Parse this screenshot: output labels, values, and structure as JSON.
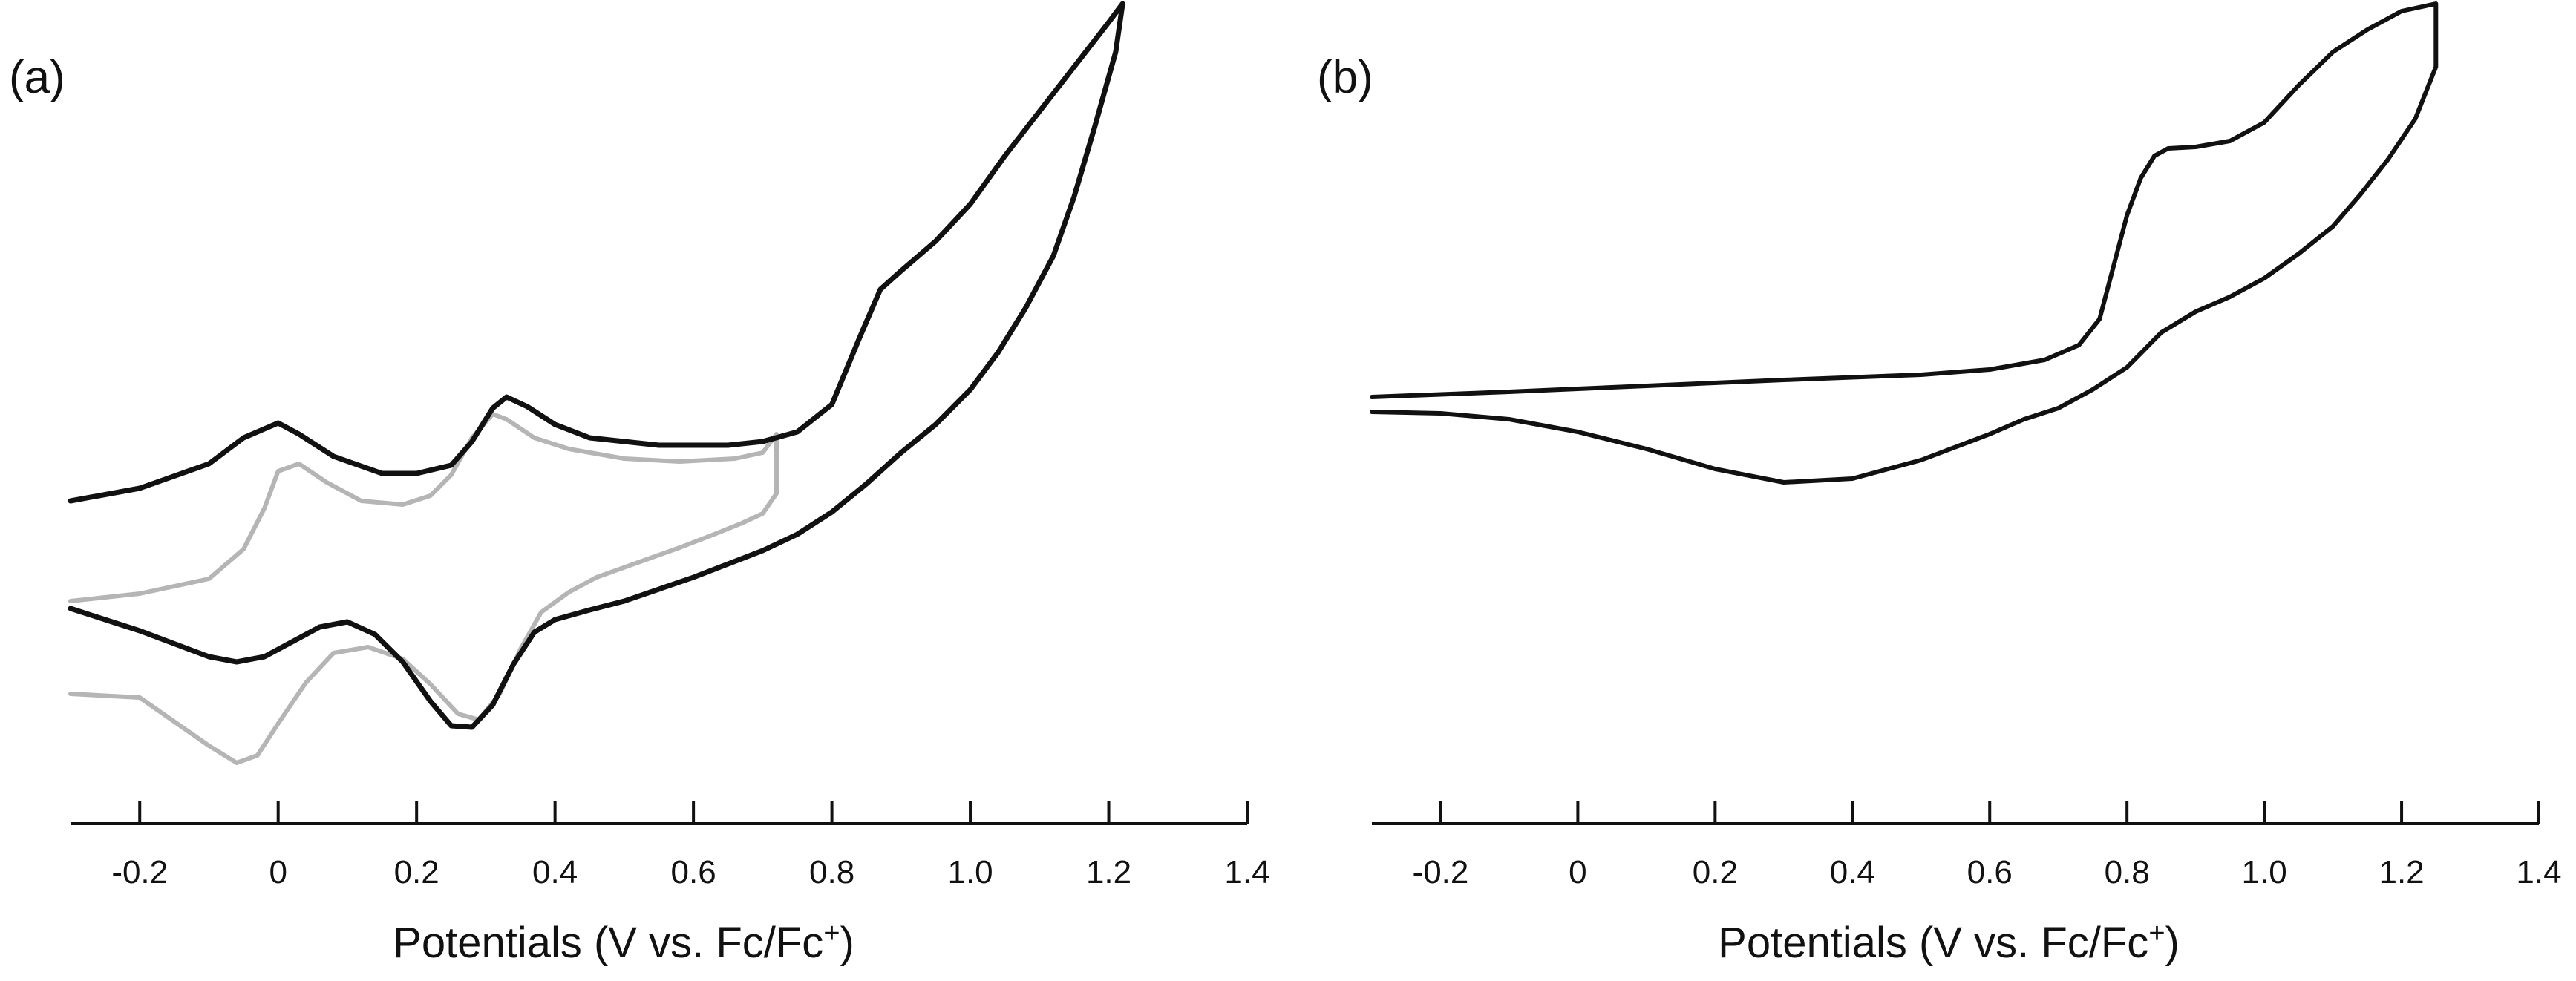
{
  "figure": {
    "xlabel_prefix": "Potentials (V vs. Fc/Fc",
    "xlabel_superscript": "+",
    "xlabel_suffix": ")"
  },
  "chart_data": [
    {
      "type": "line",
      "panel_label": "(a)",
      "xlabel": "Potentials (V vs. Fc/Fc+)",
      "ylabel": "",
      "xlim": [
        -0.3,
        1.4
      ],
      "ylim": [
        -3.4,
        7.2
      ],
      "x_ticks": [
        -0.2,
        0,
        0.2,
        0.4,
        0.6,
        0.8,
        1.0,
        1.2,
        1.4
      ],
      "x_tick_labels": [
        "-0.2",
        "0",
        "0.2",
        "0.4",
        "0.6",
        "0.8",
        "1.0",
        "1.2",
        "1.4"
      ],
      "grid": false,
      "legend": "none",
      "series": [
        {
          "name": "black",
          "color": "#111111",
          "width": 7,
          "x": [
            -0.3,
            -0.2,
            -0.1,
            -0.05,
            0.0,
            0.03,
            0.08,
            0.15,
            0.2,
            0.25,
            0.28,
            0.31,
            0.33,
            0.36,
            0.4,
            0.45,
            0.55,
            0.65,
            0.7,
            0.75,
            0.8,
            0.84,
            0.87,
            0.9,
            0.95,
            1.0,
            1.05,
            1.1,
            1.15,
            1.2,
            1.22,
            1.21,
            1.18,
            1.15,
            1.12,
            1.08,
            1.04,
            1.0,
            0.95,
            0.9,
            0.85,
            0.8,
            0.75,
            0.7,
            0.6,
            0.5,
            0.45,
            0.4,
            0.37,
            0.34,
            0.31,
            0.28,
            0.25,
            0.22,
            0.18,
            0.14,
            0.1,
            0.06,
            0.02,
            -0.02,
            -0.06,
            -0.1,
            -0.2,
            -0.3
          ],
          "y": [
            0.45,
            0.62,
            0.95,
            1.3,
            1.5,
            1.35,
            1.05,
            0.82,
            0.82,
            0.93,
            1.25,
            1.7,
            1.85,
            1.72,
            1.48,
            1.3,
            1.2,
            1.2,
            1.25,
            1.38,
            1.75,
            2.65,
            3.3,
            3.55,
            3.95,
            4.45,
            5.1,
            5.7,
            6.3,
            6.9,
            7.15,
            6.5,
            5.5,
            4.55,
            3.75,
            3.05,
            2.45,
            1.95,
            1.48,
            1.1,
            0.68,
            0.3,
            0.0,
            -0.22,
            -0.58,
            -0.9,
            -1.02,
            -1.15,
            -1.32,
            -1.75,
            -2.3,
            -2.6,
            -2.58,
            -2.25,
            -1.72,
            -1.35,
            -1.18,
            -1.25,
            -1.45,
            -1.65,
            -1.72,
            -1.65,
            -1.3,
            -1.0
          ]
        },
        {
          "name": "gray",
          "color": "#b5b5b5",
          "width": 6,
          "x": [
            -0.3,
            -0.2,
            -0.1,
            -0.05,
            -0.02,
            0.0,
            0.03,
            0.07,
            0.12,
            0.18,
            0.22,
            0.25,
            0.28,
            0.31,
            0.33,
            0.37,
            0.42,
            0.5,
            0.58,
            0.66,
            0.7,
            0.72,
            0.72,
            0.7,
            0.67,
            0.63,
            0.58,
            0.52,
            0.46,
            0.42,
            0.38,
            0.35,
            0.32,
            0.29,
            0.26,
            0.22,
            0.18,
            0.13,
            0.08,
            0.04,
            0.0,
            -0.03,
            -0.06,
            -0.1,
            -0.2,
            -0.3
          ],
          "y": [
            -0.9,
            -0.8,
            -0.6,
            -0.2,
            0.35,
            0.85,
            0.95,
            0.7,
            0.45,
            0.4,
            0.52,
            0.8,
            1.3,
            1.62,
            1.55,
            1.3,
            1.15,
            1.02,
            0.98,
            1.02,
            1.1,
            1.35,
            0.55,
            0.28,
            0.15,
            0.0,
            -0.18,
            -0.38,
            -0.58,
            -0.78,
            -1.05,
            -1.55,
            -2.15,
            -2.5,
            -2.42,
            -2.02,
            -1.68,
            -1.52,
            -1.6,
            -2.0,
            -2.55,
            -2.98,
            -3.08,
            -2.85,
            -2.2,
            -2.15
          ]
        }
      ]
    },
    {
      "type": "line",
      "panel_label": "(b)",
      "xlabel": "Potentials (V vs. Fc/Fc+)",
      "ylabel": "",
      "xlim": [
        -0.3,
        1.4
      ],
      "ylim": [
        -3.4,
        7.2
      ],
      "x_ticks": [
        -0.2,
        0,
        0.2,
        0.4,
        0.6,
        0.8,
        1.0,
        1.2,
        1.4
      ],
      "x_tick_labels": [
        "-0.2",
        "0",
        "0.2",
        "0.4",
        "0.6",
        "0.8",
        "1.0",
        "1.2",
        "1.4"
      ],
      "grid": false,
      "legend": "none",
      "series": [
        {
          "name": "black",
          "color": "#111111",
          "width": 6,
          "x": [
            -0.3,
            -0.1,
            0.1,
            0.3,
            0.5,
            0.6,
            0.68,
            0.73,
            0.76,
            0.78,
            0.8,
            0.82,
            0.84,
            0.86,
            0.9,
            0.95,
            1.0,
            1.05,
            1.1,
            1.15,
            1.2,
            1.25,
            1.25,
            1.22,
            1.18,
            1.14,
            1.1,
            1.05,
            1.0,
            0.95,
            0.9,
            0.85,
            0.8,
            0.75,
            0.7,
            0.65,
            0.6,
            0.5,
            0.4,
            0.3,
            0.2,
            0.1,
            0.0,
            -0.1,
            -0.2,
            -0.3
          ],
          "y": [
            1.85,
            1.92,
            2.0,
            2.08,
            2.15,
            2.22,
            2.35,
            2.55,
            2.9,
            3.6,
            4.3,
            4.8,
            5.1,
            5.2,
            5.22,
            5.3,
            5.55,
            6.05,
            6.5,
            6.8,
            7.05,
            7.15,
            6.3,
            5.6,
            5.05,
            4.58,
            4.15,
            3.78,
            3.45,
            3.2,
            3.0,
            2.72,
            2.25,
            1.95,
            1.7,
            1.55,
            1.35,
            1.0,
            0.75,
            0.7,
            0.88,
            1.15,
            1.38,
            1.55,
            1.63,
            1.65
          ]
        }
      ]
    }
  ]
}
